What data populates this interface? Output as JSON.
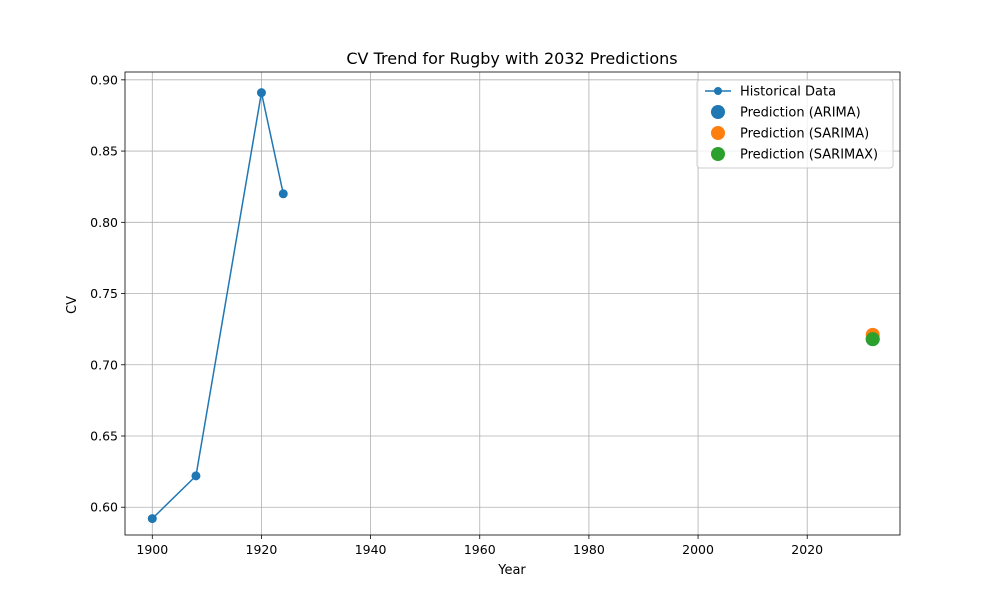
{
  "chart_data": {
    "type": "line",
    "title": "CV Trend for Rugby with 2032 Predictions",
    "xlabel": "Year",
    "ylabel": "CV",
    "xlim": [
      1895,
      2037
    ],
    "ylim": [
      0.5805,
      0.9055
    ],
    "xticks": [
      1900,
      1920,
      1940,
      1960,
      1980,
      2000,
      2020
    ],
    "yticks": [
      0.6,
      0.65,
      0.7,
      0.75,
      0.8,
      0.85,
      0.9
    ],
    "grid": true,
    "legend_position": "top-right",
    "series": [
      {
        "name": "Historical Data",
        "kind": "line-marker",
        "color": "#1f77b4",
        "x": [
          1900,
          1908,
          1920,
          1924
        ],
        "y": [
          0.592,
          0.622,
          0.891,
          0.82
        ]
      },
      {
        "name": "Prediction (ARIMA)",
        "kind": "scatter",
        "color": "#1f77b4",
        "x": [
          2032
        ],
        "y": [
          0.718
        ]
      },
      {
        "name": "Prediction (SARIMA)",
        "kind": "scatter",
        "color": "#ff7f0e",
        "x": [
          2032
        ],
        "y": [
          0.721
        ]
      },
      {
        "name": "Prediction (SARIMAX)",
        "kind": "scatter",
        "color": "#2ca02c",
        "x": [
          2032
        ],
        "y": [
          0.718
        ]
      }
    ]
  }
}
